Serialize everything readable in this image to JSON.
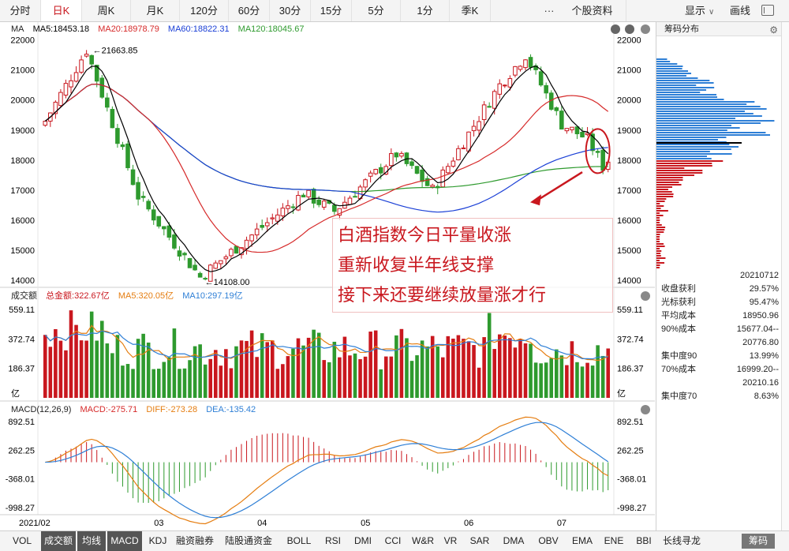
{
  "period_tabs": [
    "分时",
    "日K",
    "周K",
    "月K",
    "120分",
    "60分",
    "30分",
    "15分",
    "5分",
    "1分",
    "季K"
  ],
  "active_period": "日K",
  "more_label": "···",
  "stock_info_tab": "个股资料",
  "display_label": "显示",
  "draw_label": "画线",
  "price_legend": {
    "name": "MA",
    "ma5": "MA5:18453.18",
    "ma20": "MA20:18978.79",
    "ma60": "MA60:18822.31",
    "ma120": "MA120:18045.67"
  },
  "volume_legend": {
    "name": "成交额",
    "total": "总金额:322.67亿",
    "ma5": "MA5:320.05亿",
    "ma10": "MA10:297.19亿"
  },
  "macd_legend": {
    "name": "MACD(12,26,9)",
    "macd": "MACD:-275.71",
    "diff": "DIFF:-273.28",
    "dea": "DEA:-135.42"
  },
  "colors": {
    "up": "#c9171e",
    "down": "#2e9a2e",
    "ma5": "#000000",
    "ma20": "#d62a2a",
    "ma60": "#1a3fd6",
    "ma120": "#2e9a2e",
    "vol_ma5": "#e57d10",
    "vol_ma10": "#2e7fd6",
    "diff": "#e57d10",
    "dea": "#2e7fd6",
    "annotation": "#c9171e"
  },
  "annotation": {
    "lines": [
      "白酒指数今日平量收涨",
      "重新收复半年线支撑",
      "接下来还要继续放量涨才行"
    ]
  },
  "chart_data": [
    {
      "type": "candlestick",
      "y_ticks": [
        22000,
        21000,
        20000,
        19000,
        18000,
        17000,
        16000,
        15000,
        14000
      ],
      "y_tick_labels": [
        "22000",
        "21000",
        "20000",
        "19000",
        "18000",
        "17000",
        "16000",
        "15000",
        "14000"
      ],
      "ylim": [
        13820,
        22120
      ],
      "x_tick_labels": [
        "2021/02",
        "03",
        "04",
        "05",
        "06",
        "07"
      ],
      "high_label": "21663.85",
      "low_label": "14108.00",
      "high_value": 21663.85,
      "low_value": 14108.0,
      "series_ma": [
        "ma5",
        "ma20",
        "ma60",
        "ma120"
      ],
      "grid": false
    },
    {
      "type": "bar",
      "y_tick_labels": [
        "559.11",
        "372.74",
        "186.37"
      ],
      "y_ticks": [
        559.11,
        372.74,
        186.37
      ],
      "unit": "亿",
      "ylim": [
        0,
        600
      ]
    },
    {
      "type": "bar",
      "y_tick_labels": [
        "892.51",
        "262.25",
        "-368.01",
        "-998.27"
      ],
      "y_ticks": [
        892.51,
        262.25,
        -368.01,
        -998.27
      ],
      "ylim": [
        -1120,
        1000
      ]
    }
  ],
  "chip_distribution": {
    "title": "筹码分布",
    "date": "20210712",
    "stats": [
      {
        "label": "收盘获利",
        "value": "29.57%"
      },
      {
        "label": "光标获利",
        "value": "95.47%"
      },
      {
        "label": "平均成本",
        "value": "18950.96"
      },
      {
        "label": "90%成本",
        "value": "15677.04--"
      },
      {
        "label": "",
        "value": "20776.80"
      },
      {
        "label": "集中度90",
        "value": "13.99%"
      },
      {
        "label": "70%成本",
        "value": "16999.20--"
      },
      {
        "label": "",
        "value": "20210.16"
      },
      {
        "label": "集中度70",
        "value": "8.63%"
      }
    ]
  },
  "indicator_tabs": [
    "VOL",
    "成交额",
    "均线",
    "MACD",
    "KDJ",
    "融资融券",
    "陆股通资金",
    "BOLL",
    "RSI",
    "DMI",
    "CCI",
    "W&R",
    "VR",
    "SAR",
    "DMA",
    "OBV",
    "EMA",
    "ENE",
    "BBI",
    "长线寻龙"
  ],
  "active_indicators": [
    "成交额",
    "均线",
    "MACD"
  ],
  "chip_tab": "筹码"
}
